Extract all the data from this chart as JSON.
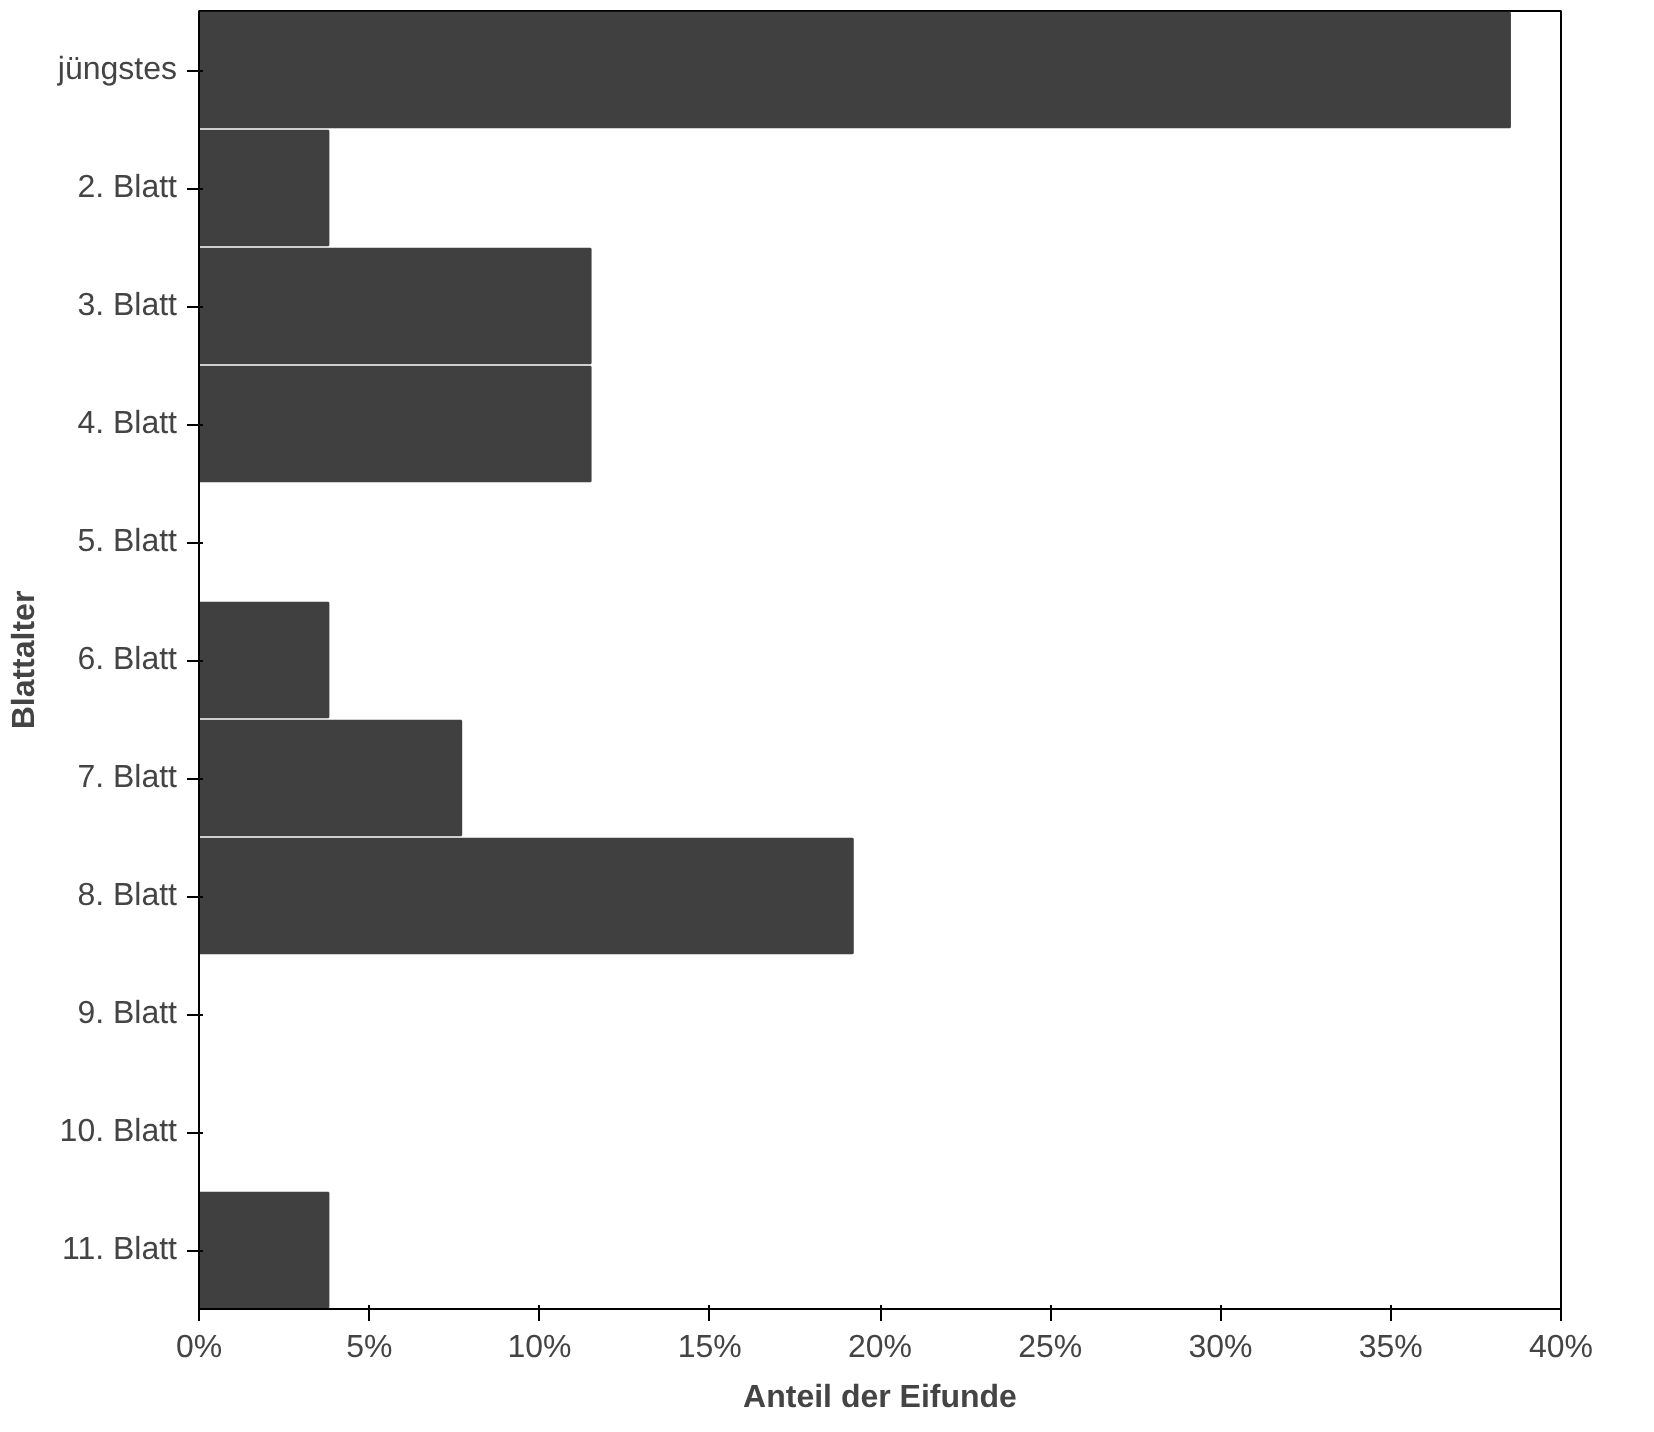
{
  "chart_data": {
    "type": "bar",
    "orientation": "horizontal",
    "xlabel": "Anteil der Eifunde",
    "ylabel": "Blattalter",
    "categories": [
      "jüngstes",
      "2. Blatt",
      "3. Blatt",
      "4. Blatt",
      "5. Blatt",
      "6. Blatt",
      "7. Blatt",
      "8. Blatt",
      "9. Blatt",
      "10. Blatt",
      "11. Blatt"
    ],
    "values": [
      38.5,
      3.8,
      11.5,
      11.5,
      0,
      3.8,
      7.7,
      19.2,
      0,
      0,
      3.8
    ],
    "color": "#404040",
    "xlim": [
      0,
      40
    ],
    "xticks": [
      {
        "value": 0,
        "label": "0%"
      },
      {
        "value": 5,
        "label": "5%"
      },
      {
        "value": 10,
        "label": "10%"
      },
      {
        "value": 15,
        "label": "15%"
      },
      {
        "value": 20,
        "label": "20%"
      },
      {
        "value": 25,
        "label": "25%"
      },
      {
        "value": 30,
        "label": "30%"
      },
      {
        "value": 35,
        "label": "35%"
      },
      {
        "value": 40,
        "label": "40%"
      }
    ],
    "grid": false
  }
}
